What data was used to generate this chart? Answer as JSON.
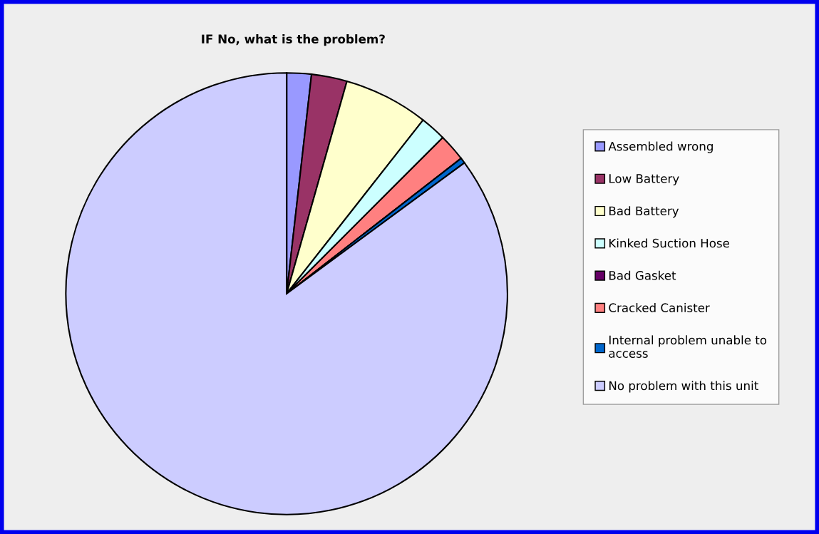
{
  "chart_data": {
    "type": "pie",
    "title": "IF No, what is the problem?",
    "categories": [
      "Assembled wrong",
      "Low Battery",
      "Bad Battery",
      "Kinked Suction Hose",
      "Bad Gasket",
      "Cracked Canister",
      "Internal problem unable to access",
      "No problem with this unit"
    ],
    "values": [
      1.8,
      2.6,
      6.2,
      1.9,
      0,
      2.0,
      0.4,
      85.1
    ],
    "colors": [
      "#9999ff",
      "#993366",
      "#ffffcc",
      "#ccffff",
      "#660066",
      "#ff8080",
      "#0066cc",
      "#ccccff"
    ],
    "legend": "right"
  }
}
